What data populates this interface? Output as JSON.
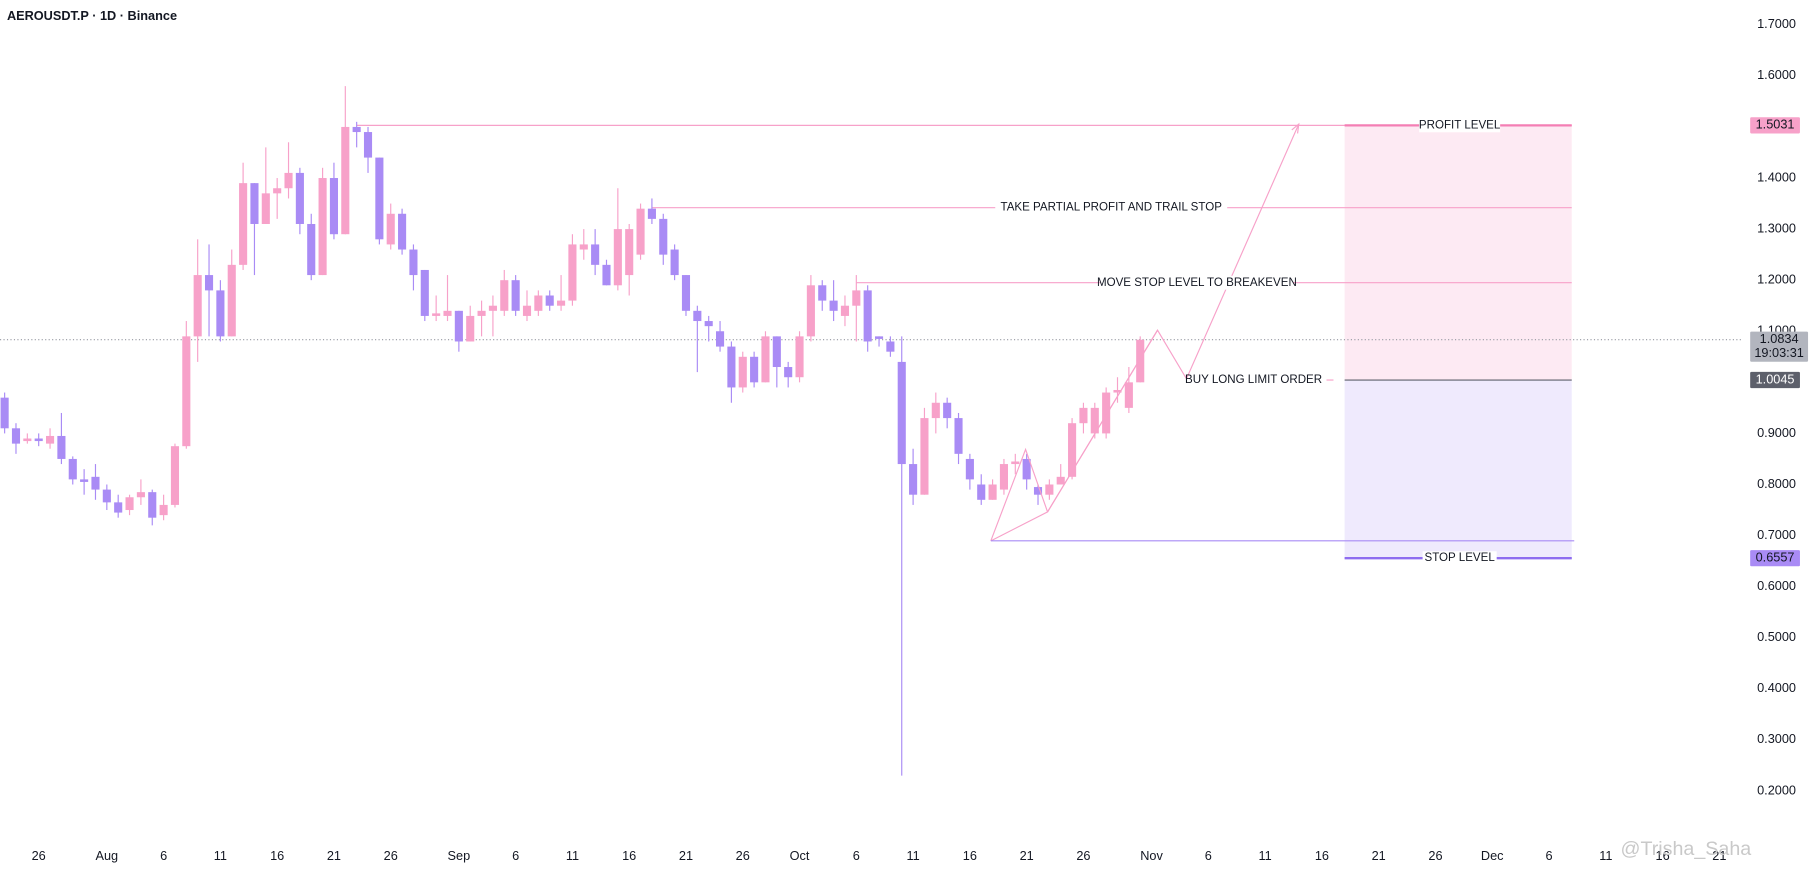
{
  "chart_data": {
    "type": "candlestick",
    "title": "AEROUSDT.P · 1D · Binance",
    "up_color": "#f7a1c9",
    "down_color": "#a98bf5",
    "x": [
      "07-23",
      "07-24",
      "07-25",
      "07-26",
      "07-27",
      "07-28",
      "07-29",
      "07-30",
      "07-31",
      "08-01",
      "08-02",
      "08-03",
      "08-04",
      "08-05",
      "08-06",
      "08-07",
      "08-08",
      "08-09",
      "08-10",
      "08-11",
      "08-12",
      "08-13",
      "08-14",
      "08-15",
      "08-16",
      "08-17",
      "08-18",
      "08-19",
      "08-20",
      "08-21",
      "08-22",
      "08-23",
      "08-24",
      "08-25",
      "08-26",
      "08-27",
      "08-28",
      "08-29",
      "08-30",
      "08-31",
      "09-01",
      "09-02",
      "09-03",
      "09-04",
      "09-05",
      "09-06",
      "09-07",
      "09-08",
      "09-09",
      "09-10",
      "09-11",
      "09-12",
      "09-13",
      "09-14",
      "09-15",
      "09-16",
      "09-17",
      "09-18",
      "09-19",
      "09-20",
      "09-21",
      "09-22",
      "09-23",
      "09-24",
      "09-25",
      "09-26",
      "09-27",
      "09-28",
      "09-29",
      "09-30",
      "10-01",
      "10-02",
      "10-03",
      "10-04",
      "10-05",
      "10-06",
      "10-07",
      "10-08",
      "10-09",
      "10-10",
      "10-11",
      "10-12",
      "10-13",
      "10-14",
      "10-15",
      "10-16",
      "10-17",
      "10-18",
      "10-19",
      "10-20",
      "10-21",
      "10-22",
      "10-23",
      "10-24",
      "10-25",
      "10-26",
      "10-27",
      "10-28",
      "10-29",
      "10-30",
      "10-31"
    ],
    "open": [
      0.97,
      0.91,
      0.885,
      0.89,
      0.88,
      0.895,
      0.85,
      0.81,
      0.815,
      0.79,
      0.765,
      0.75,
      0.775,
      0.785,
      0.74,
      0.76,
      0.875,
      1.09,
      1.21,
      1.18,
      1.09,
      1.23,
      1.39,
      1.31,
      1.37,
      1.38,
      1.41,
      1.31,
      1.21,
      1.4,
      1.29,
      1.5,
      1.49,
      1.44,
      1.27,
      1.33,
      1.26,
      1.22,
      1.13,
      1.13,
      1.14,
      1.08,
      1.13,
      1.14,
      1.14,
      1.2,
      1.13,
      1.14,
      1.17,
      1.15,
      1.16,
      1.26,
      1.27,
      1.23,
      1.19,
      1.21,
      1.25,
      1.34,
      1.32,
      1.26,
      1.21,
      1.14,
      1.12,
      1.1,
      1.07,
      0.99,
      1.05,
      1.0,
      1.09,
      1.03,
      1.01,
      1.09,
      1.19,
      1.16,
      1.13,
      1.15,
      1.18,
      1.09,
      1.08,
      1.04,
      0.84,
      0.78,
      0.93,
      0.96,
      0.93,
      0.85,
      0.8,
      0.77,
      0.79,
      0.84,
      0.85,
      0.795,
      0.78,
      0.8,
      0.815,
      0.92,
      0.9,
      0.9,
      0.98,
      0.95,
      1.0
    ],
    "high": [
      0.98,
      0.92,
      0.9,
      0.9,
      0.91,
      0.94,
      0.855,
      0.83,
      0.84,
      0.8,
      0.78,
      0.78,
      0.81,
      0.79,
      0.78,
      0.88,
      1.12,
      1.28,
      1.27,
      1.2,
      1.26,
      1.43,
      1.39,
      1.46,
      1.4,
      1.47,
      1.42,
      1.33,
      1.42,
      1.43,
      1.58,
      1.51,
      1.5,
      1.44,
      1.35,
      1.34,
      1.27,
      1.22,
      1.17,
      1.21,
      1.14,
      1.15,
      1.16,
      1.17,
      1.22,
      1.21,
      1.18,
      1.18,
      1.18,
      1.21,
      1.29,
      1.3,
      1.3,
      1.24,
      1.38,
      1.31,
      1.35,
      1.36,
      1.33,
      1.27,
      1.21,
      1.15,
      1.13,
      1.12,
      1.08,
      1.06,
      1.06,
      1.1,
      1.09,
      1.04,
      1.1,
      1.21,
      1.2,
      1.2,
      1.17,
      1.21,
      1.19,
      1.09,
      1.09,
      1.09,
      0.87,
      0.95,
      0.98,
      0.97,
      0.94,
      0.86,
      0.82,
      0.81,
      0.85,
      0.86,
      0.86,
      0.8,
      0.81,
      0.84,
      0.93,
      0.96,
      0.96,
      0.99,
      1.01,
      1.03,
      1.09
    ],
    "low": [
      0.9,
      0.86,
      0.88,
      0.875,
      0.87,
      0.84,
      0.8,
      0.78,
      0.77,
      0.75,
      0.735,
      0.74,
      0.76,
      0.72,
      0.73,
      0.755,
      0.87,
      1.04,
      1.09,
      1.08,
      1.09,
      1.22,
      1.21,
      1.31,
      1.32,
      1.36,
      1.29,
      1.2,
      1.21,
      1.28,
      1.29,
      1.46,
      1.41,
      1.27,
      1.26,
      1.25,
      1.18,
      1.12,
      1.12,
      1.12,
      1.06,
      1.08,
      1.09,
      1.09,
      1.13,
      1.13,
      1.12,
      1.13,
      1.14,
      1.14,
      1.15,
      1.24,
      1.21,
      1.19,
      1.18,
      1.17,
      1.24,
      1.31,
      1.23,
      1.2,
      1.13,
      1.02,
      1.08,
      1.06,
      0.96,
      0.98,
      0.99,
      1.0,
      0.99,
      0.99,
      1.0,
      1.08,
      1.14,
      1.12,
      1.11,
      1.08,
      1.06,
      1.07,
      1.05,
      0.23,
      0.76,
      0.78,
      0.9,
      0.91,
      0.84,
      0.79,
      0.76,
      0.77,
      0.78,
      0.82,
      0.79,
      0.76,
      0.77,
      0.8,
      0.81,
      0.9,
      0.89,
      0.89,
      0.96,
      0.94,
      1.0
    ],
    "close": [
      0.91,
      0.88,
      0.89,
      0.885,
      0.895,
      0.85,
      0.81,
      0.805,
      0.79,
      0.765,
      0.745,
      0.775,
      0.785,
      0.735,
      0.76,
      0.875,
      1.09,
      1.21,
      1.18,
      1.09,
      1.23,
      1.39,
      1.31,
      1.37,
      1.38,
      1.41,
      1.31,
      1.21,
      1.4,
      1.29,
      1.5,
      1.49,
      1.44,
      1.28,
      1.33,
      1.26,
      1.21,
      1.13,
      1.135,
      1.14,
      1.08,
      1.13,
      1.14,
      1.15,
      1.2,
      1.14,
      1.15,
      1.17,
      1.15,
      1.16,
      1.27,
      1.27,
      1.23,
      1.19,
      1.3,
      1.3,
      1.34,
      1.32,
      1.25,
      1.21,
      1.14,
      1.12,
      1.11,
      1.07,
      0.99,
      1.05,
      1.0,
      1.09,
      1.03,
      1.01,
      1.09,
      1.19,
      1.16,
      1.14,
      1.15,
      1.18,
      1.08,
      1.085,
      1.06,
      0.84,
      0.78,
      0.93,
      0.96,
      0.93,
      0.86,
      0.81,
      0.77,
      0.8,
      0.84,
      0.845,
      0.81,
      0.78,
      0.8,
      0.815,
      0.92,
      0.95,
      0.95,
      0.98,
      0.985,
      1.0,
      1.0834
    ],
    "countdown": "19:03:31",
    "xlim": [
      "07-23",
      "12-23"
    ],
    "xticks": [
      {
        "value": "07-26",
        "label": "26"
      },
      {
        "value": "08-01",
        "label": "Aug"
      },
      {
        "value": "08-06",
        "label": "6"
      },
      {
        "value": "08-11",
        "label": "11"
      },
      {
        "value": "08-16",
        "label": "16"
      },
      {
        "value": "08-21",
        "label": "21"
      },
      {
        "value": "08-26",
        "label": "26"
      },
      {
        "value": "09-01",
        "label": "Sep"
      },
      {
        "value": "09-06",
        "label": "6"
      },
      {
        "value": "09-11",
        "label": "11"
      },
      {
        "value": "09-16",
        "label": "16"
      },
      {
        "value": "09-21",
        "label": "21"
      },
      {
        "value": "09-26",
        "label": "26"
      },
      {
        "value": "10-01",
        "label": "Oct"
      },
      {
        "value": "10-06",
        "label": "6"
      },
      {
        "value": "10-11",
        "label": "11"
      },
      {
        "value": "10-16",
        "label": "16"
      },
      {
        "value": "10-21",
        "label": "21"
      },
      {
        "value": "10-26",
        "label": "26"
      },
      {
        "value": "11-01",
        "label": "Nov"
      },
      {
        "value": "11-06",
        "label": "6"
      },
      {
        "value": "11-11",
        "label": "11"
      },
      {
        "value": "11-16",
        "label": "16"
      },
      {
        "value": "11-21",
        "label": "21"
      },
      {
        "value": "11-26",
        "label": "26"
      },
      {
        "value": "12-01",
        "label": "Dec"
      },
      {
        "value": "12-06",
        "label": "6"
      },
      {
        "value": "12-11",
        "label": "11"
      },
      {
        "value": "12-16",
        "label": "16"
      },
      {
        "value": "12-21",
        "label": "21"
      }
    ],
    "ylim": [
      0.105,
      1.748
    ],
    "yticks": [
      {
        "value": 0.2,
        "label": "0.2000"
      },
      {
        "value": 0.3,
        "label": "0.3000"
      },
      {
        "value": 0.4,
        "label": "0.4000"
      },
      {
        "value": 0.5,
        "label": "0.5000"
      },
      {
        "value": 0.6,
        "label": "0.6000"
      },
      {
        "value": 0.7,
        "label": "0.7000"
      },
      {
        "value": 0.8,
        "label": "0.8000"
      },
      {
        "value": 0.9,
        "label": "0.9000"
      },
      {
        "value": 1.0,
        "label": "1.0000"
      },
      {
        "value": 1.1,
        "label": "1.1000"
      },
      {
        "value": 1.2,
        "label": "1.2000"
      },
      {
        "value": 1.3,
        "label": "1.3000"
      },
      {
        "value": 1.4,
        "label": "1.4000"
      },
      {
        "value": 1.5,
        "label": "1.5000"
      },
      {
        "value": 1.6,
        "label": "1.6000"
      },
      {
        "value": 1.7,
        "label": "1.7000"
      }
    ],
    "levels": [
      {
        "label": "TAKE PARTIAL PROFIT AND TRAIL STOP",
        "value": 1.342,
        "from": "09-18"
      },
      {
        "label": "MOVE STOP LEVEL TO BREAKEVEN",
        "value": 1.195,
        "from": "10-06"
      }
    ],
    "position": {
      "from": "11-18",
      "to": "12-08",
      "target_from": "08-23",
      "target": 1.5031,
      "entry": 1.0045,
      "stop": 0.6557,
      "target_label": "PROFIT LEVEL",
      "entry_label": "BUY LONG LIMIT ORDER",
      "stop_label": "STOP LEVEL"
    },
    "watermark": "@Trisha_Saha"
  }
}
